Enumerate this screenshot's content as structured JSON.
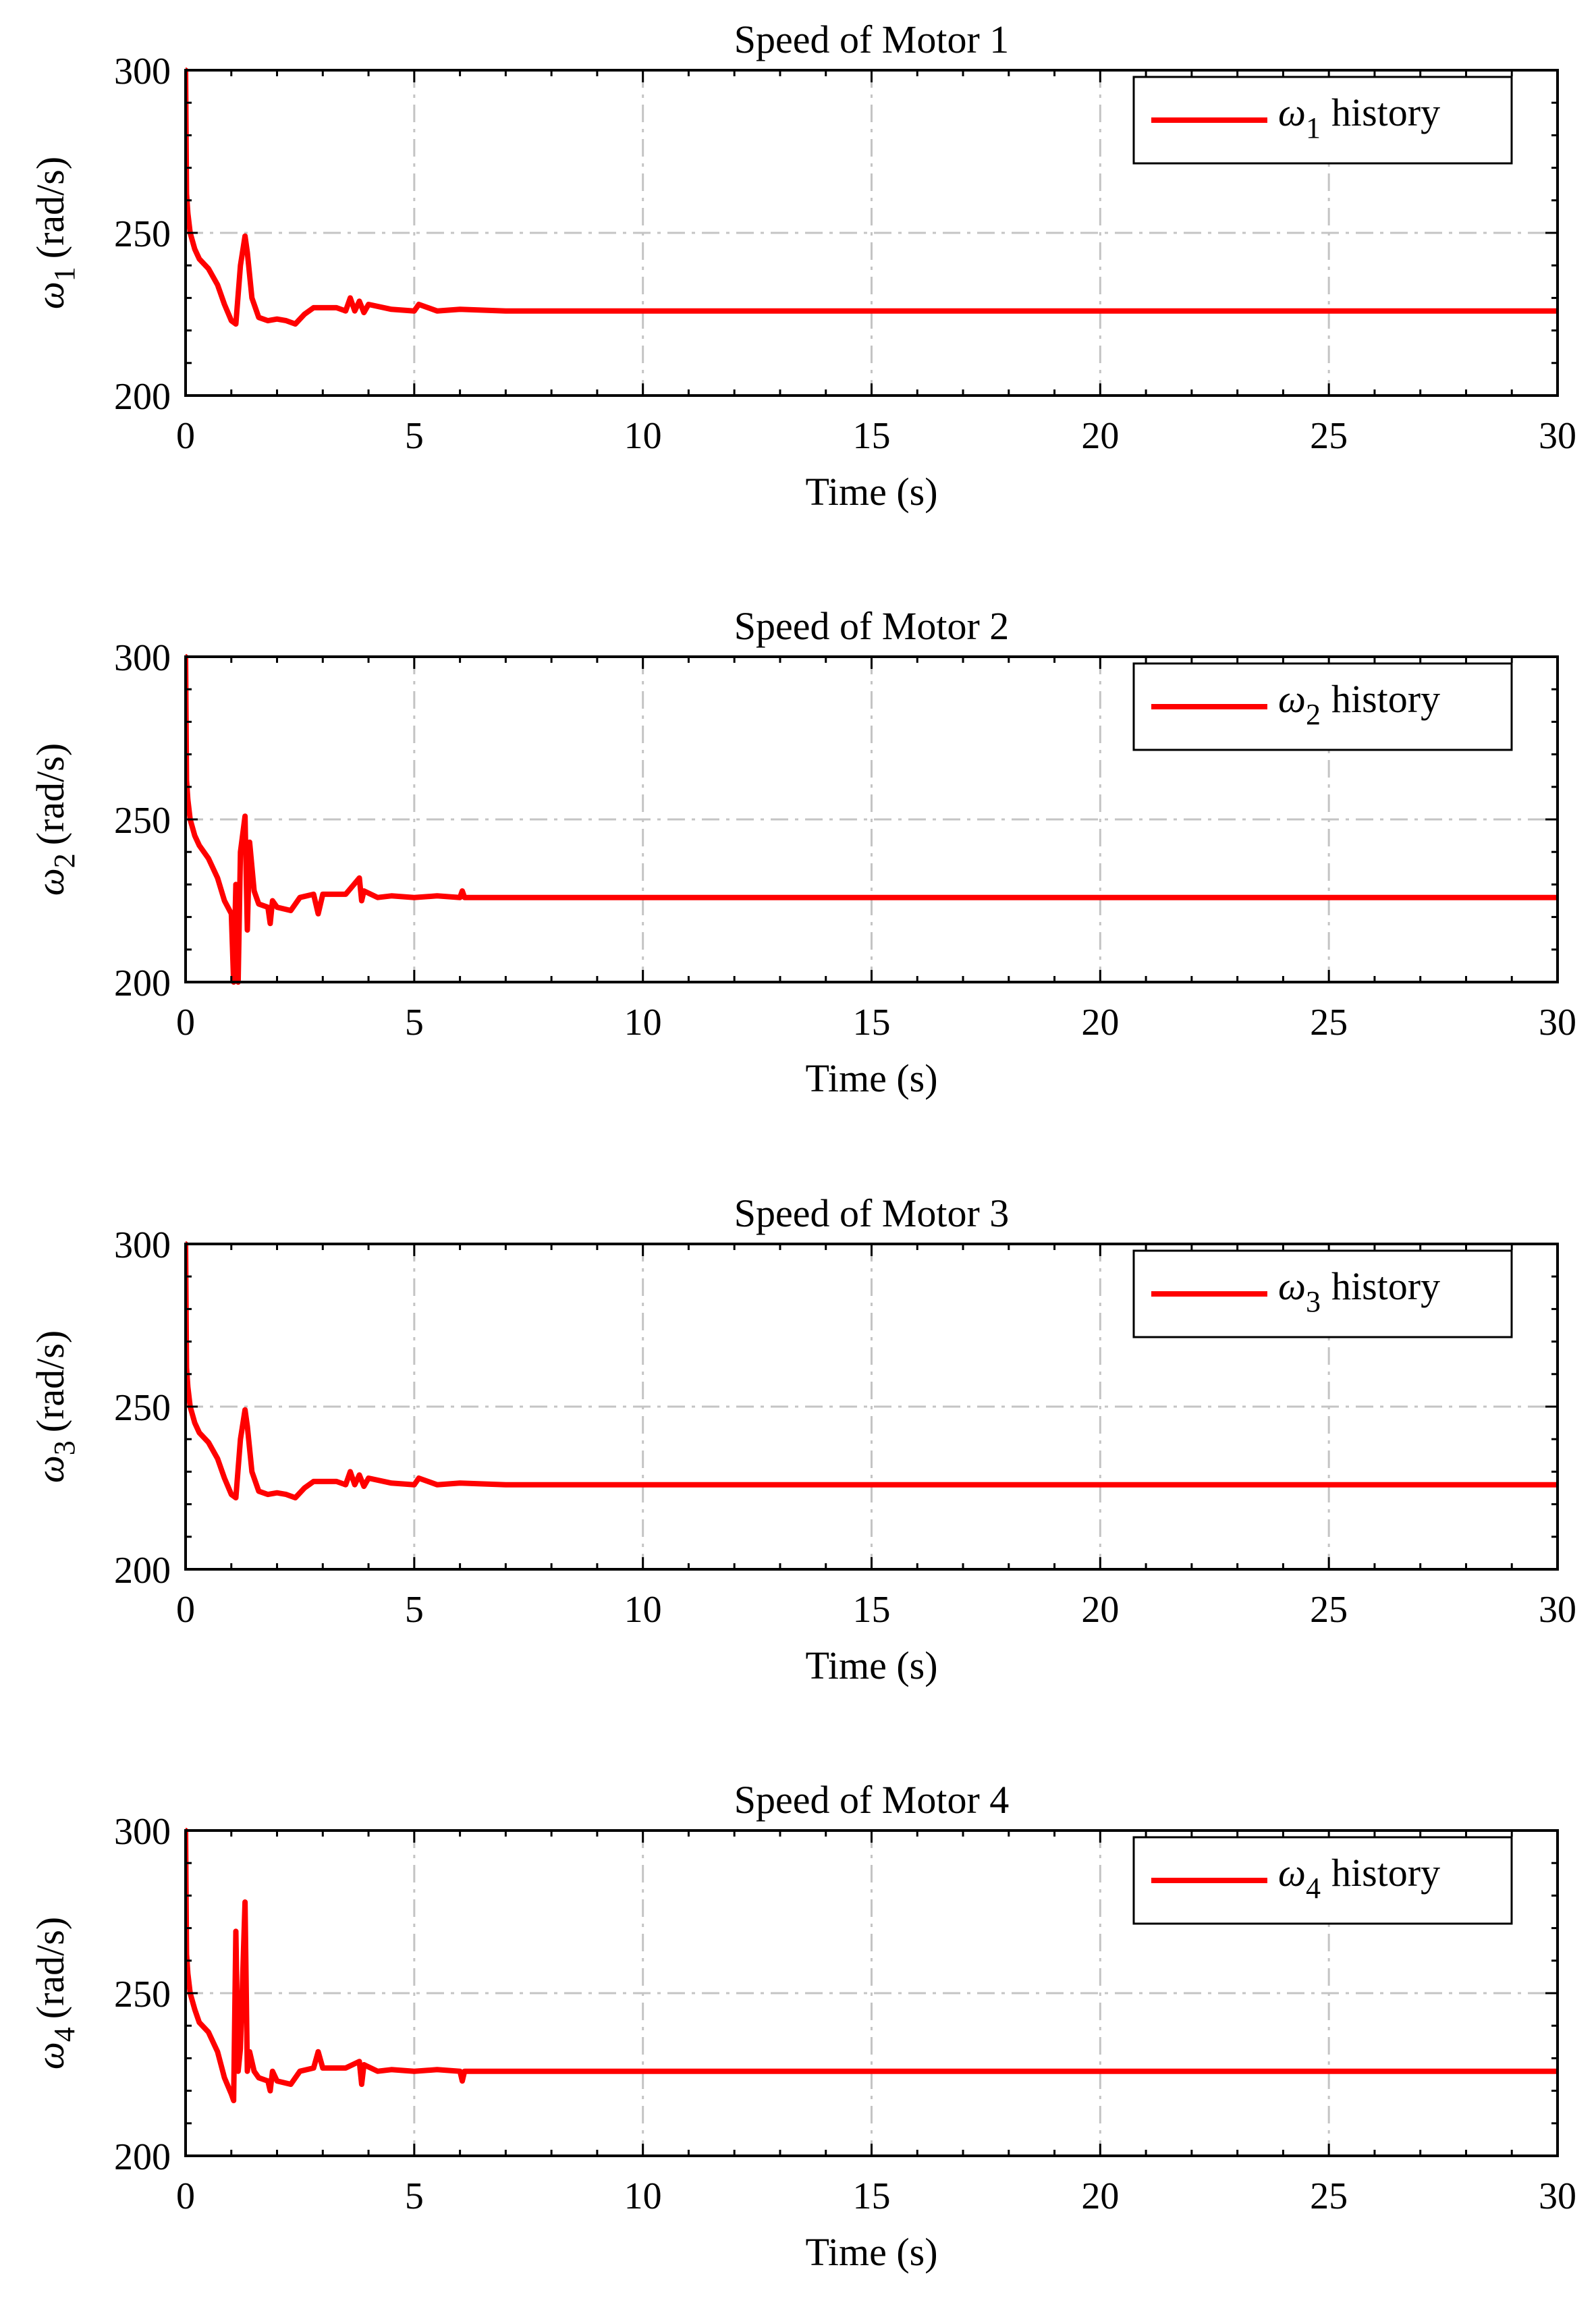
{
  "series_color": "#ff0000",
  "grid_color": "#c4c4c4",
  "chart_data": [
    {
      "type": "line",
      "title": "Speed of Motor 1",
      "xlabel": "Time (s)",
      "ylabel_symbol": "ω",
      "ylabel_sub": "1",
      "ylabel_unit": "(rad/s)",
      "xlim": [
        0,
        30
      ],
      "ylim": [
        200,
        300
      ],
      "xticks": [
        0,
        5,
        10,
        15,
        20,
        25,
        30
      ],
      "yticks": [
        200,
        250,
        300
      ],
      "grid": true,
      "legend_position": "top-right",
      "legend": {
        "symbol": "ω",
        "sub": "1",
        "text": "history"
      },
      "series": [
        {
          "name": "ω1 history",
          "x": [
            0,
            0.02,
            0.05,
            0.1,
            0.2,
            0.3,
            0.5,
            0.7,
            0.85,
            1.0,
            1.1,
            1.2,
            1.3,
            1.35,
            1.45,
            1.6,
            1.8,
            2.0,
            2.2,
            2.4,
            2.6,
            2.8,
            3.0,
            3.3,
            3.5,
            3.6,
            3.7,
            3.8,
            3.9,
            4.0,
            4.5,
            5.0,
            5.1,
            5.5,
            6.0,
            7.0,
            8.0,
            10.0,
            15.0,
            20.0,
            25.0,
            30.0
          ],
          "y": [
            300,
            262,
            256,
            250,
            245,
            242,
            239,
            234,
            228,
            223,
            222,
            240,
            249,
            244,
            230,
            224,
            223,
            223.5,
            223,
            222,
            225,
            227,
            227,
            227,
            226,
            230,
            226,
            229,
            225.5,
            228,
            226.5,
            226,
            228,
            226,
            226.5,
            226,
            226,
            226,
            226,
            226,
            226,
            226
          ]
        }
      ]
    },
    {
      "type": "line",
      "title": "Speed of Motor 2",
      "xlabel": "Time (s)",
      "ylabel_symbol": "ω",
      "ylabel_sub": "2",
      "ylabel_unit": "(rad/s)",
      "xlim": [
        0,
        30
      ],
      "ylim": [
        200,
        300
      ],
      "xticks": [
        0,
        5,
        10,
        15,
        20,
        25,
        30
      ],
      "yticks": [
        200,
        250,
        300
      ],
      "grid": true,
      "legend_position": "top-right",
      "legend": {
        "symbol": "ω",
        "sub": "2",
        "text": "history"
      },
      "series": [
        {
          "name": "ω2 history",
          "x": [
            0,
            0.02,
            0.05,
            0.1,
            0.2,
            0.3,
            0.5,
            0.7,
            0.85,
            1.0,
            1.05,
            1.1,
            1.15,
            1.2,
            1.3,
            1.35,
            1.4,
            1.5,
            1.6,
            1.8,
            1.85,
            1.9,
            2.0,
            2.3,
            2.5,
            2.8,
            2.9,
            3.0,
            3.5,
            3.8,
            3.85,
            3.9,
            4.2,
            4.5,
            5.0,
            5.5,
            6.0,
            6.05,
            6.1,
            7.0,
            8.0,
            10.0,
            15.0,
            20.0,
            25.0,
            30.0
          ],
          "y": [
            300,
            262,
            256,
            250,
            245,
            242,
            238,
            232,
            225,
            221,
            200,
            230,
            200,
            240,
            251,
            216,
            243,
            228,
            224,
            223,
            218,
            225,
            223,
            222,
            226,
            227,
            221,
            227,
            227,
            232,
            225,
            228,
            226,
            226.5,
            226,
            226.5,
            226,
            228,
            226,
            226,
            226,
            226,
            226,
            226,
            226,
            226
          ]
        }
      ]
    },
    {
      "type": "line",
      "title": "Speed of Motor 3",
      "xlabel": "Time (s)",
      "ylabel_symbol": "ω",
      "ylabel_sub": "3",
      "ylabel_unit": "(rad/s)",
      "xlim": [
        0,
        30
      ],
      "ylim": [
        200,
        300
      ],
      "xticks": [
        0,
        5,
        10,
        15,
        20,
        25,
        30
      ],
      "yticks": [
        200,
        250,
        300
      ],
      "grid": true,
      "legend_position": "top-right",
      "legend": {
        "symbol": "ω",
        "sub": "3",
        "text": "history"
      },
      "series": [
        {
          "name": "ω3 history",
          "x": [
            0,
            0.02,
            0.05,
            0.1,
            0.2,
            0.3,
            0.5,
            0.7,
            0.85,
            1.0,
            1.1,
            1.2,
            1.3,
            1.35,
            1.45,
            1.6,
            1.8,
            2.0,
            2.2,
            2.4,
            2.6,
            2.8,
            3.0,
            3.3,
            3.5,
            3.6,
            3.7,
            3.8,
            3.9,
            4.0,
            4.5,
            5.0,
            5.1,
            5.5,
            6.0,
            7.0,
            8.0,
            10.0,
            15.0,
            20.0,
            25.0,
            30.0
          ],
          "y": [
            300,
            262,
            256,
            250,
            245,
            242,
            239,
            234,
            228,
            223,
            222,
            240,
            249,
            244,
            230,
            224,
            223,
            223.5,
            223,
            222,
            225,
            227,
            227,
            227,
            226,
            230,
            226,
            229,
            225.5,
            228,
            226.5,
            226,
            228,
            226,
            226.5,
            226,
            226,
            226,
            226,
            226,
            226,
            226
          ]
        }
      ]
    },
    {
      "type": "line",
      "title": "Speed of Motor 4",
      "xlabel": "Time (s)",
      "ylabel_symbol": "ω",
      "ylabel_sub": "4",
      "ylabel_unit": "(rad/s)",
      "xlim": [
        0,
        30
      ],
      "ylim": [
        200,
        300
      ],
      "xticks": [
        0,
        5,
        10,
        15,
        20,
        25,
        30
      ],
      "yticks": [
        200,
        250,
        300
      ],
      "grid": true,
      "legend_position": "top-right",
      "legend": {
        "symbol": "ω",
        "sub": "4",
        "text": "history"
      },
      "series": [
        {
          "name": "ω4 history",
          "x": [
            0,
            0.02,
            0.05,
            0.1,
            0.2,
            0.3,
            0.5,
            0.7,
            0.85,
            1.0,
            1.05,
            1.1,
            1.15,
            1.2,
            1.3,
            1.35,
            1.4,
            1.5,
            1.6,
            1.8,
            1.85,
            1.9,
            2.0,
            2.3,
            2.5,
            2.8,
            2.9,
            3.0,
            3.5,
            3.8,
            3.85,
            3.9,
            4.2,
            4.5,
            5.0,
            5.5,
            6.0,
            6.05,
            6.1,
            7.0,
            8.0,
            10.0,
            15.0,
            20.0,
            25.0,
            30.0
          ],
          "y": [
            300,
            262,
            256,
            250,
            245,
            241,
            238,
            232,
            224,
            219,
            217,
            269,
            226,
            233,
            278,
            226,
            232,
            226,
            224,
            223,
            220,
            226,
            223,
            222,
            226,
            227,
            232,
            227,
            227,
            229,
            222,
            228,
            226,
            226.5,
            226,
            226.5,
            226,
            223,
            226,
            226,
            226,
            226,
            226,
            226,
            226,
            226
          ]
        }
      ]
    }
  ]
}
